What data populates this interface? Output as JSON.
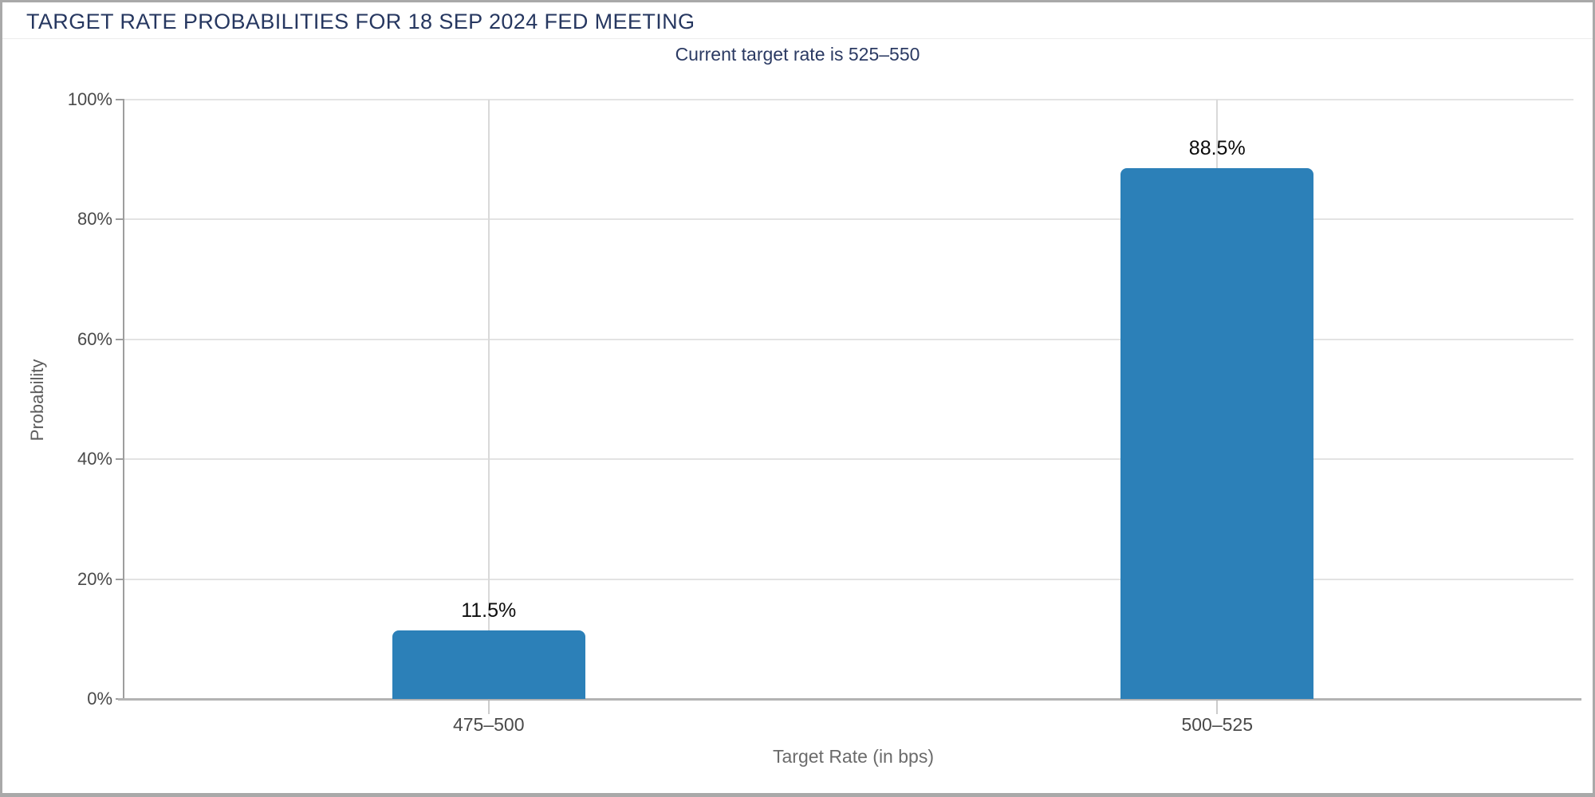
{
  "window": {
    "title": "TARGET RATE PROBABILITIES FOR 18 SEP 2024 FED MEETING"
  },
  "chart_data": {
    "type": "bar",
    "title": "TARGET RATE PROBABILITIES FOR 18 SEP 2024 FED MEETING",
    "subtitle": "Current target rate is 525–550",
    "categories": [
      "475–500",
      "500–525"
    ],
    "values": [
      11.5,
      88.5
    ],
    "value_labels": [
      "11.5%",
      "88.5%"
    ],
    "xlabel": "Target Rate (in bps)",
    "ylabel": "Probability",
    "ylim": [
      0,
      100
    ],
    "yticks": [
      {
        "value": 0,
        "label": "0%"
      },
      {
        "value": 20,
        "label": "20%"
      },
      {
        "value": 40,
        "label": "40%"
      },
      {
        "value": 60,
        "label": "60%"
      },
      {
        "value": 80,
        "label": "80%"
      },
      {
        "value": 100,
        "label": "100%"
      }
    ],
    "grid": true,
    "legend": false,
    "bar_color": "#2c80b8"
  },
  "colors": {
    "title_text": "#263760",
    "subtitle_text": "#2b3a63",
    "bar_fill": "#2c80b8",
    "tick_label_text": "#4a4a4a",
    "axis_title_text": "#666666",
    "gridline": "#e3e3e3",
    "axis_line": "#9e9e9e",
    "value_label_text": "#0d0d0d",
    "frame_border": "#a9a9a9"
  }
}
